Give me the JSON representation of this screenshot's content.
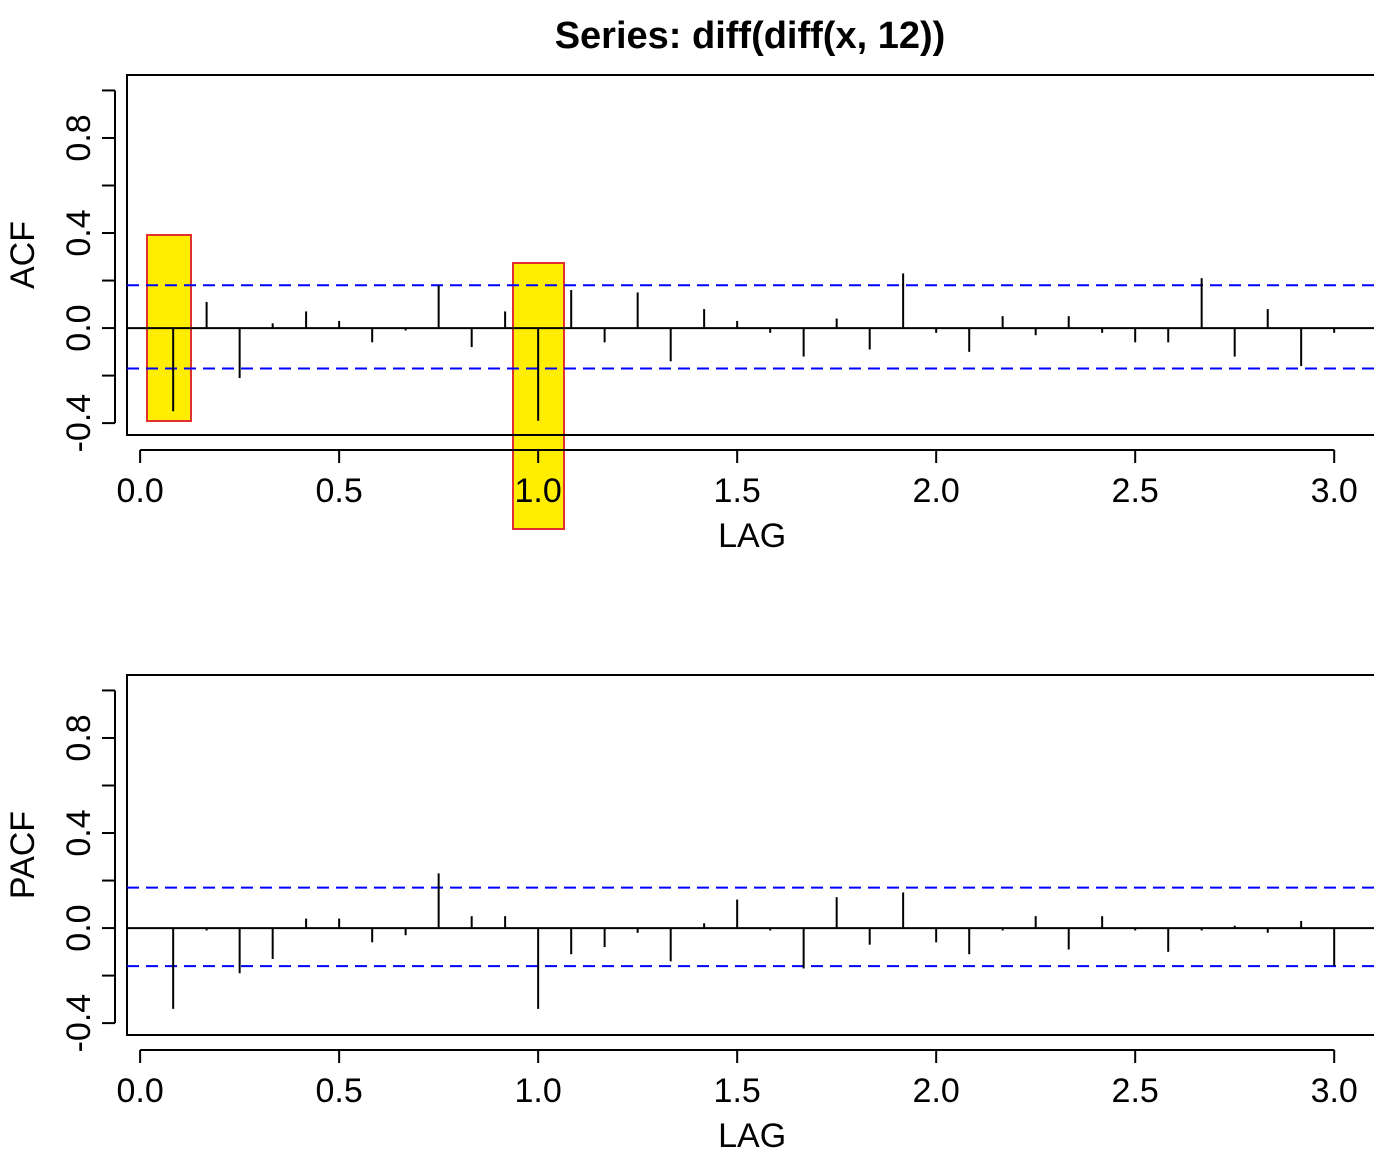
{
  "chart_data": [
    {
      "type": "stem",
      "title": "Series:  diff(diff(x, 12))",
      "xlabel": "LAG",
      "ylabel": "ACF",
      "x": [
        0.083,
        0.167,
        0.25,
        0.333,
        0.417,
        0.5,
        0.583,
        0.667,
        0.75,
        0.833,
        0.917,
        1.0,
        1.083,
        1.167,
        1.25,
        1.333,
        1.417,
        1.5,
        1.583,
        1.667,
        1.75,
        1.833,
        1.917,
        2.0,
        2.083,
        2.167,
        2.25,
        2.333,
        2.417,
        2.5,
        2.583,
        2.667,
        2.75,
        2.833,
        2.917,
        3.0
      ],
      "values": [
        -0.35,
        0.11,
        -0.21,
        0.02,
        0.07,
        0.03,
        -0.06,
        -0.01,
        0.18,
        -0.08,
        0.07,
        -0.39,
        0.16,
        -0.06,
        0.15,
        -0.14,
        0.08,
        0.03,
        -0.02,
        -0.12,
        0.04,
        -0.09,
        0.23,
        -0.02,
        -0.1,
        0.05,
        -0.03,
        0.05,
        -0.02,
        -0.06,
        -0.06,
        0.21,
        -0.12,
        0.08,
        -0.16,
        -0.02
      ],
      "color": "#000000",
      "ci_lines": [
        0.18,
        -0.17
      ],
      "ci_color": "#0000ff",
      "xlim": [
        -0.033,
        3.1
      ],
      "ylim": [
        -0.45,
        1.065
      ],
      "xticks": [
        {
          "value": 0,
          "label": "0.0"
        },
        0.5,
        {
          "value": 1,
          "label": "1.0"
        },
        1.5,
        {
          "value": 2,
          "label": "2.0"
        },
        2.5,
        {
          "value": 3,
          "label": "3.0"
        }
      ],
      "yticks": [
        -0.4,
        {
          "value": 0,
          "label": "0.0"
        },
        0.4,
        0.8
      ],
      "yminor_ticks": [
        -0.2,
        0.2,
        0.6,
        1.0
      ]
    },
    {
      "type": "stem",
      "xlabel": "LAG",
      "ylabel": "PACF",
      "x": [
        0.083,
        0.167,
        0.25,
        0.333,
        0.417,
        0.5,
        0.583,
        0.667,
        0.75,
        0.833,
        0.917,
        1.0,
        1.083,
        1.167,
        1.25,
        1.333,
        1.417,
        1.5,
        1.583,
        1.667,
        1.75,
        1.833,
        1.917,
        2.0,
        2.083,
        2.167,
        2.25,
        2.333,
        2.417,
        2.5,
        2.583,
        2.667,
        2.75,
        2.833,
        2.917,
        3.0
      ],
      "values": [
        -0.34,
        -0.01,
        -0.19,
        -0.13,
        0.04,
        0.04,
        -0.06,
        -0.03,
        0.23,
        0.05,
        0.05,
        -0.34,
        -0.11,
        -0.08,
        -0.02,
        -0.14,
        0.02,
        0.12,
        -0.01,
        -0.17,
        0.13,
        -0.07,
        0.15,
        -0.06,
        -0.11,
        -0.01,
        0.05,
        -0.09,
        0.05,
        -0.01,
        -0.1,
        -0.01,
        0.01,
        -0.02,
        0.03,
        -0.16
      ],
      "color": "#000000",
      "ci_lines": [
        0.17,
        -0.16
      ],
      "ci_color": "#0000ff",
      "xlim": [
        -0.033,
        3.1
      ],
      "ylim": [
        -0.45,
        1.065
      ],
      "xticks": [
        {
          "value": 0,
          "label": "0.0"
        },
        0.5,
        {
          "value": 1,
          "label": "1.0"
        },
        1.5,
        {
          "value": 2,
          "label": "2.0"
        },
        2.5,
        {
          "value": 3,
          "label": "3.0"
        }
      ],
      "yticks": [
        -0.4,
        {
          "value": 0,
          "label": "0.0"
        },
        0.4,
        0.8
      ],
      "yminor_ticks": [
        -0.2,
        0.2,
        0.6,
        1.0
      ]
    }
  ]
}
